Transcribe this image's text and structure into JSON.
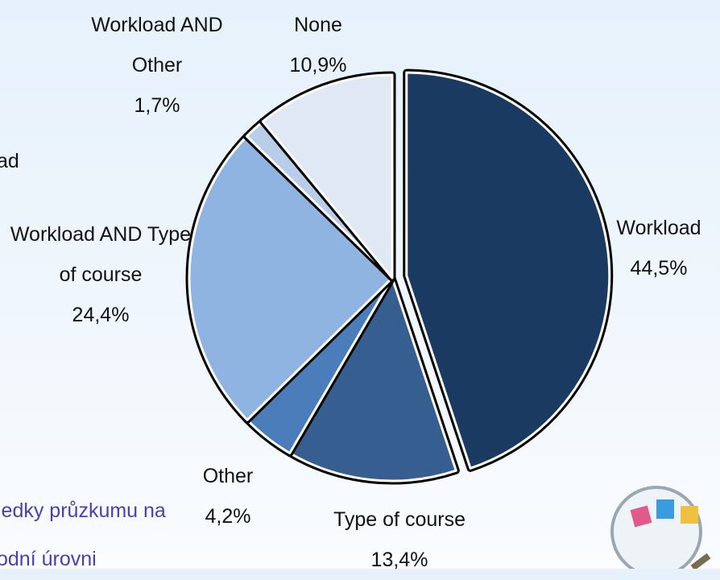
{
  "chart_data": {
    "type": "pie",
    "categories": [
      "Workload",
      "Type of course",
      "Other",
      "Workload AND Type of course",
      "Workload AND Other",
      "None"
    ],
    "values": [
      44.5,
      13.4,
      4.2,
      24.4,
      1.7,
      10.9
    ],
    "value_labels": [
      "44,5%",
      "13,4%",
      "4,2%",
      "24,4%",
      "1,7%",
      "10,9%"
    ],
    "colors": [
      "#1b3a62",
      "#375e90",
      "#4b7dba",
      "#8fb4e1",
      "#b8cde7",
      "#dfe8f3"
    ],
    "exploded": "Workload"
  },
  "slide_fragments": [
    "ad",
    "ledky průzkumu na",
    "odní úrovni"
  ]
}
